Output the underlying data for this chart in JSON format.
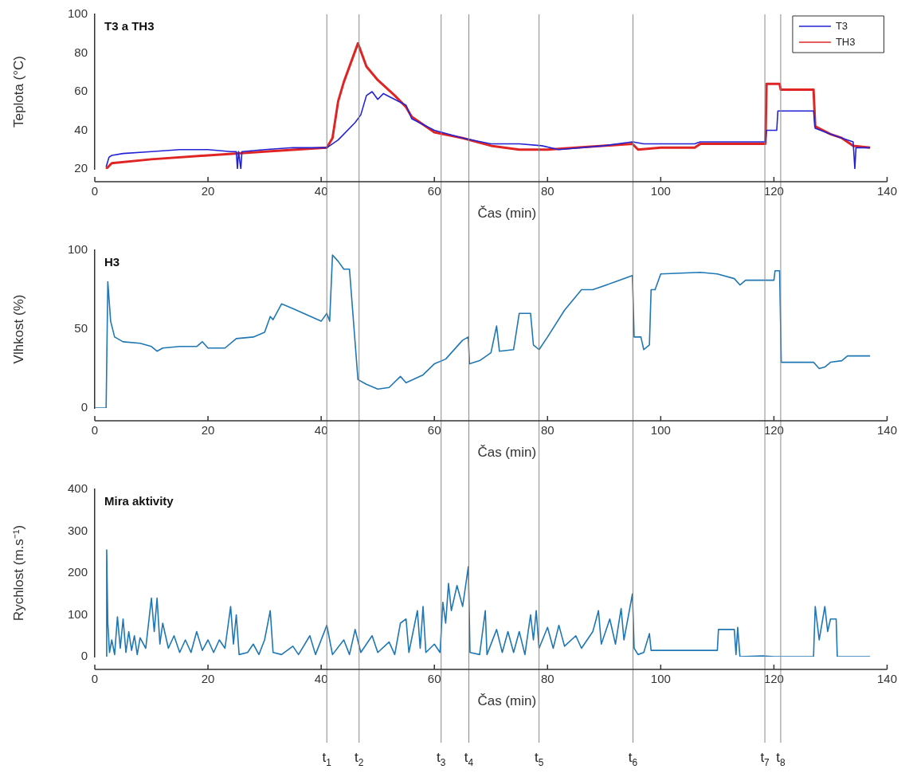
{
  "chart_data": [
    {
      "type": "line",
      "title": "T3 a TH3",
      "xlabel": "Čas (min)",
      "ylabel": "Teplota (°C)",
      "xlim": [
        0,
        140
      ],
      "xticks": [
        0,
        20,
        40,
        60,
        80,
        100,
        120,
        140
      ],
      "ylim": [
        20,
        100
      ],
      "yticks": [
        20,
        40,
        60,
        80,
        100
      ],
      "legend": "top right",
      "series": [
        {
          "name": "T3",
          "color": "#2323d6",
          "x": [
            2,
            2.5,
            3,
            5,
            10,
            15,
            20,
            24,
            25,
            25.2,
            25.4,
            25.8,
            26,
            30,
            35,
            41,
            43,
            46,
            47,
            48,
            49,
            50,
            51,
            55,
            56,
            60,
            65,
            70,
            75,
            79,
            82,
            90,
            95,
            97,
            100,
            106,
            107,
            118.5,
            118.7,
            120.5,
            120.7,
            127,
            127.3,
            130,
            132,
            134,
            134.3,
            134.5,
            137
          ],
          "values": [
            21,
            26,
            27,
            28,
            29,
            30,
            30,
            29,
            29,
            20,
            29,
            20,
            29,
            30,
            31,
            31,
            35,
            44,
            48,
            58,
            60,
            56,
            59,
            53,
            46,
            40,
            36,
            33,
            33,
            32,
            30,
            32,
            34,
            33,
            33,
            33,
            34,
            34,
            40,
            40,
            50,
            50,
            41,
            38,
            36,
            34,
            20,
            31,
            31
          ]
        },
        {
          "name": "TH3",
          "color": "#e02424",
          "x": [
            2,
            3,
            10,
            20,
            30,
            41,
            42,
            43,
            44,
            46.5,
            48,
            50,
            53,
            55,
            56,
            60,
            65,
            70,
            75,
            80,
            85,
            95,
            96,
            100,
            106,
            107,
            118.5,
            118.7,
            121,
            121.2,
            127,
            127.3,
            130,
            132,
            134,
            137
          ],
          "values": [
            20,
            23,
            25,
            27,
            29,
            31,
            36,
            55,
            65,
            85,
            73,
            66,
            58,
            52,
            47,
            39,
            36,
            32,
            30,
            30,
            31,
            33,
            30,
            31,
            31,
            33,
            33,
            64,
            64,
            61,
            61,
            42,
            38,
            36,
            32,
            31
          ]
        }
      ],
      "ref_lines": [
        {
          "axis": "x",
          "value": 41
        },
        {
          "axis": "x",
          "value": 46.7
        },
        {
          "axis": "x",
          "value": 61.2
        },
        {
          "axis": "x",
          "value": 66.1
        },
        {
          "axis": "x",
          "value": 78.5
        },
        {
          "axis": "x",
          "value": 95.1
        },
        {
          "axis": "x",
          "value": 118.4
        },
        {
          "axis": "x",
          "value": 121.2
        }
      ]
    },
    {
      "type": "line",
      "title": "H3",
      "xlabel": "Čas (min)",
      "ylabel": "Vlhkost (%)",
      "xlim": [
        0,
        140
      ],
      "xticks": [
        0,
        20,
        40,
        60,
        80,
        100,
        120,
        140
      ],
      "ylim": [
        0,
        100
      ],
      "yticks": [
        0,
        50,
        100
      ],
      "series": [
        {
          "color": "#1f77b4",
          "x": [
            0,
            2,
            2.3,
            2.8,
            3.5,
            5,
            8,
            10,
            11,
            12,
            15,
            18,
            19,
            20,
            23,
            25,
            28,
            30,
            31,
            31.5,
            33,
            35,
            40,
            41,
            41.5,
            42,
            43,
            44,
            45,
            46.5,
            48,
            50,
            52,
            54,
            55,
            58,
            60,
            62,
            65,
            66,
            66.2,
            68,
            70,
            71,
            71.5,
            74,
            75,
            77,
            77.5,
            78.5,
            80,
            83,
            86,
            88,
            92,
            95,
            95.3,
            96.5,
            97,
            98,
            98.3,
            99,
            100,
            107,
            110,
            113,
            114,
            115,
            120,
            120.2,
            121,
            121.3,
            127,
            128,
            129,
            130,
            132,
            133,
            137
          ],
          "values": [
            0,
            0,
            80,
            55,
            45,
            42,
            41,
            39,
            36,
            38,
            39,
            39,
            42,
            38,
            38,
            44,
            45,
            48,
            58,
            56,
            66,
            63,
            55,
            60,
            55,
            97,
            93,
            88,
            88,
            18,
            15,
            12,
            13,
            20,
            16,
            21,
            28,
            31,
            43,
            45,
            28,
            30,
            35,
            52,
            36,
            37,
            60,
            60,
            40,
            37,
            45,
            62,
            75,
            75,
            80,
            84,
            45,
            45,
            37,
            40,
            75,
            75,
            85,
            86,
            85,
            82,
            78,
            81,
            81,
            87,
            87,
            29,
            29,
            25,
            26,
            29,
            30,
            33,
            33
          ]
        }
      ],
      "ref_lines": [
        {
          "axis": "x",
          "value": 41
        },
        {
          "axis": "x",
          "value": 46.7
        },
        {
          "axis": "x",
          "value": 61.2
        },
        {
          "axis": "x",
          "value": 66.1
        },
        {
          "axis": "x",
          "value": 78.5
        },
        {
          "axis": "x",
          "value": 95.1
        },
        {
          "axis": "x",
          "value": 118.4
        },
        {
          "axis": "x",
          "value": 121.2
        }
      ]
    },
    {
      "type": "line",
      "title": "Mira aktivity",
      "xlabel": "Čas (min)",
      "ylabel": "Rychlost (m.s⁻¹)",
      "xlim": [
        0,
        140
      ],
      "xticks": [
        0,
        20,
        40,
        60,
        80,
        100,
        120,
        140
      ],
      "ylim": [
        0,
        400
      ],
      "yticks": [
        0,
        100,
        200,
        300,
        400
      ],
      "series": [
        {
          "color": "#1f77b4",
          "x": [
            2,
            2.1,
            2.3,
            2.6,
            3,
            3.5,
            4,
            4.5,
            5,
            5.5,
            6,
            6.5,
            7,
            7.5,
            8,
            9,
            10,
            10.5,
            11,
            11.5,
            12,
            13,
            14,
            15,
            16,
            17,
            18,
            19,
            20,
            21,
            22,
            23,
            24,
            24.5,
            25,
            25.5,
            27,
            28,
            29,
            30,
            31,
            31.5,
            33,
            35,
            36,
            38,
            39,
            41,
            42,
            44,
            45,
            46,
            47,
            49,
            50,
            52,
            53,
            54,
            55,
            55.5,
            57,
            57.5,
            58,
            58.5,
            60,
            61,
            61.5,
            62,
            62.5,
            63,
            64,
            65,
            66,
            66.3,
            68,
            69,
            69.3,
            71,
            72,
            73,
            74,
            75,
            76,
            77,
            77.5,
            78,
            78.5,
            80,
            81,
            82,
            83,
            85,
            86,
            88,
            89,
            89.5,
            91,
            92,
            93,
            93.5,
            95,
            95.3,
            96,
            97,
            98,
            98.3,
            100,
            110,
            110.2,
            113,
            113.3,
            113.6,
            114,
            118,
            120,
            127,
            127.3,
            128,
            129,
            129.5,
            130,
            131,
            131.2,
            137
          ],
          "values": [
            0,
            255,
            80,
            10,
            40,
            5,
            95,
            20,
            90,
            10,
            60,
            15,
            50,
            5,
            45,
            20,
            140,
            60,
            140,
            30,
            80,
            20,
            50,
            10,
            40,
            10,
            60,
            15,
            40,
            10,
            40,
            20,
            120,
            30,
            100,
            5,
            10,
            30,
            5,
            40,
            110,
            10,
            5,
            25,
            5,
            50,
            5,
            75,
            5,
            40,
            5,
            65,
            10,
            50,
            10,
            35,
            5,
            80,
            90,
            10,
            110,
            20,
            120,
            10,
            30,
            10,
            130,
            80,
            175,
            110,
            170,
            120,
            215,
            10,
            5,
            110,
            5,
            65,
            10,
            60,
            10,
            60,
            5,
            100,
            40,
            110,
            20,
            70,
            20,
            75,
            25,
            50,
            20,
            60,
            110,
            30,
            90,
            30,
            115,
            40,
            150,
            20,
            5,
            10,
            55,
            15,
            15,
            15,
            65,
            65,
            5,
            70,
            0,
            2,
            0,
            0,
            120,
            40,
            120,
            60,
            90,
            90,
            0,
            0
          ]
        }
      ],
      "ref_lines": [
        {
          "axis": "x",
          "value": 41,
          "label": "t$_{1}$"
        },
        {
          "axis": "x",
          "value": 46.7,
          "label": "t$_{2}$"
        },
        {
          "axis": "x",
          "value": 61.2,
          "label": "t$_{3}$"
        },
        {
          "axis": "x",
          "value": 66.1,
          "label": "t$_{4}$"
        },
        {
          "axis": "x",
          "value": 78.5,
          "label": "t$_{5}$"
        },
        {
          "axis": "x",
          "value": 95.1,
          "label": "t$_{6}$"
        },
        {
          "axis": "x",
          "value": 118.4,
          "label": "t$_{7}$"
        },
        {
          "axis": "x",
          "value": 121.2,
          "label": "t$_{8}$"
        }
      ]
    }
  ]
}
